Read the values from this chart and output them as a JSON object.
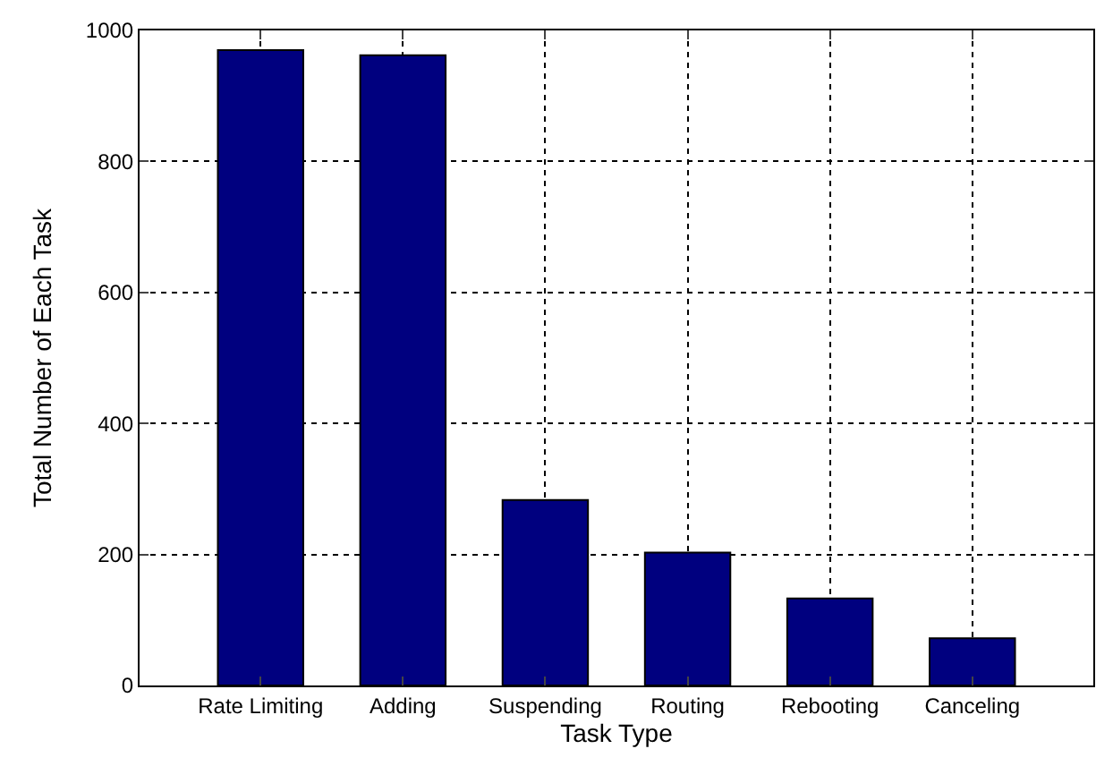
{
  "chart_data": {
    "type": "bar",
    "xlabel": "Task Type",
    "ylabel": "Total Number of Each Task",
    "categories": [
      "Rate Limiting",
      "Adding",
      "Suspending",
      "Routing",
      "Rebooting",
      "Canceling"
    ],
    "values": [
      970,
      962,
      283,
      203,
      133,
      72
    ],
    "color": "#00007f",
    "ylim": [
      0,
      1000
    ],
    "yticks": [
      0,
      200,
      400,
      600,
      800,
      1000
    ],
    "grid": true
  }
}
